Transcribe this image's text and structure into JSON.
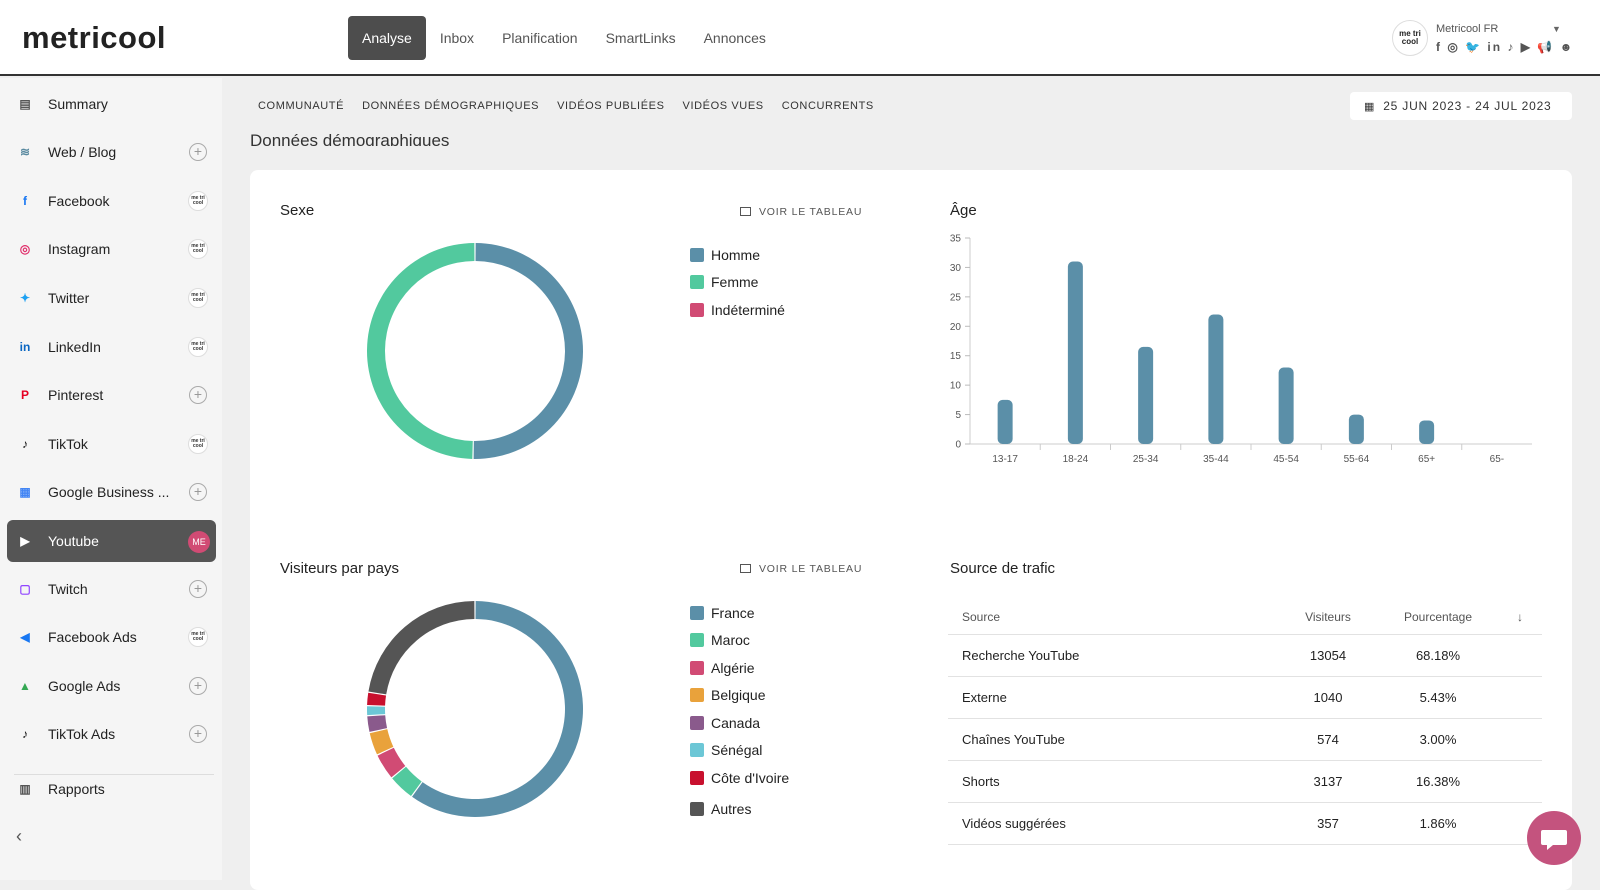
{
  "app": {
    "logo": "metricool",
    "nav": [
      "Analyse",
      "Inbox",
      "Planification",
      "SmartLinks",
      "Annonces"
    ],
    "account": {
      "name": "Metricool FR",
      "avatar_text": "me tri cool",
      "social_icons": "f ◎ 🐦 in ♪ ▶ 📢 ☻"
    }
  },
  "sidebar": {
    "items": [
      {
        "label": "Summary",
        "icon": "clipboard-icon",
        "color": "#555555",
        "glyph": "▤",
        "badge": "none"
      },
      {
        "label": "Web / Blog",
        "icon": "rss-icon",
        "color": "#5a8aa0",
        "glyph": "≋",
        "badge": "add"
      },
      {
        "label": "Facebook",
        "icon": "facebook-icon",
        "color": "#1877f2",
        "glyph": "f",
        "badge": "mini"
      },
      {
        "label": "Instagram",
        "icon": "instagram-icon",
        "color": "#e1306c",
        "glyph": "◎",
        "badge": "mini"
      },
      {
        "label": "Twitter",
        "icon": "twitter-icon",
        "color": "#1da1f2",
        "glyph": "✦",
        "badge": "mini"
      },
      {
        "label": "LinkedIn",
        "icon": "linkedin-icon",
        "color": "#0a66c2",
        "glyph": "in",
        "badge": "mini"
      },
      {
        "label": "Pinterest",
        "icon": "pinterest-icon",
        "color": "#e60023",
        "glyph": "P",
        "badge": "add"
      },
      {
        "label": "TikTok",
        "icon": "tiktok-icon",
        "color": "#111111",
        "glyph": "♪",
        "badge": "mini"
      },
      {
        "label": "Google Business ...",
        "icon": "google-business-icon",
        "color": "#4285f4",
        "glyph": "▦",
        "badge": "add"
      },
      {
        "label": "Youtube",
        "icon": "youtube-icon",
        "color": "#ffffff",
        "glyph": "▶",
        "badge": "me",
        "active": true
      },
      {
        "label": "Twitch",
        "icon": "twitch-icon",
        "color": "#9146ff",
        "glyph": "▢",
        "badge": "add"
      },
      {
        "label": "Facebook Ads",
        "icon": "megaphone-icon",
        "color": "#1877f2",
        "glyph": "◀",
        "badge": "mini"
      },
      {
        "label": "Google Ads",
        "icon": "google-ads-icon",
        "color": "#34a853",
        "glyph": "▲",
        "badge": "add"
      },
      {
        "label": "TikTok Ads",
        "icon": "tiktok-ads-icon",
        "color": "#111111",
        "glyph": "♪",
        "badge": "add"
      },
      {
        "label": "Rapports",
        "icon": "report-icon",
        "color": "#555555",
        "glyph": "▥",
        "badge": "none"
      }
    ],
    "mini_badge_text": "me tri cool",
    "me_badge_text": "ME",
    "add_symbol": "+",
    "collapse_symbol": "‹"
  },
  "subtabs": [
    "COMMUNAUTÉ",
    "DONNÉES DÉMOGRAPHIQUES",
    "VIDÉOS PUBLIÉES",
    "VIDÉOS VUES",
    "CONCURRENTS"
  ],
  "date_range": "25 JUN 2023 - 24 JUL 2023",
  "section_title": "Données démographiques",
  "voir_label": "VOIR LE TABLEAU",
  "sexe": {
    "title": "Sexe",
    "legend": [
      {
        "label": "Homme",
        "color": "#5b8fa8"
      },
      {
        "label": "Femme",
        "color": "#52c99e"
      },
      {
        "label": "Indéterminé",
        "color": "#d14b74"
      }
    ]
  },
  "pays": {
    "title": "Visiteurs par pays",
    "legend": [
      {
        "label": "France",
        "color": "#5b8fa8"
      },
      {
        "label": "Maroc",
        "color": "#52c99e"
      },
      {
        "label": "Algérie",
        "color": "#d14b74"
      },
      {
        "label": "Belgique",
        "color": "#e9a23b"
      },
      {
        "label": "Canada",
        "color": "#8a5a8c"
      },
      {
        "label": "Sénégal",
        "color": "#6cc7d6"
      },
      {
        "label": "Côte d'Ivoire",
        "color": "#c8102e"
      },
      {
        "label": "Autres",
        "color": "#555555"
      }
    ]
  },
  "age": {
    "title": "Âge"
  },
  "traffic": {
    "title": "Source de trafic",
    "headers": [
      "Source",
      "Visiteurs",
      "Pourcentage"
    ],
    "sort_icon": "↓",
    "rows": [
      [
        "Recherche YouTube",
        "13054",
        "68.18%"
      ],
      [
        "Externe",
        "1040",
        "5.43%"
      ],
      [
        "Chaînes YouTube",
        "574",
        "3.00%"
      ],
      [
        "Shorts",
        "3137",
        "16.38%"
      ],
      [
        "Vidéos suggérées",
        "357",
        "1.86%"
      ]
    ]
  },
  "chart_data": [
    {
      "type": "pie",
      "title": "Sexe",
      "categories": [
        "Homme",
        "Femme",
        "Indéterminé"
      ],
      "values": [
        50.3,
        49.7,
        0
      ],
      "colors": [
        "#5b8fa8",
        "#52c99e",
        "#d14b74"
      ]
    },
    {
      "type": "pie",
      "title": "Visiteurs par pays",
      "categories": [
        "France",
        "Maroc",
        "Algérie",
        "Belgique",
        "Canada",
        "Sénégal",
        "Côte d'Ivoire",
        "Autres"
      ],
      "values": [
        60,
        4,
        4,
        3.5,
        2.5,
        1.5,
        2,
        22.5
      ],
      "colors": [
        "#5b8fa8",
        "#52c99e",
        "#d14b74",
        "#e9a23b",
        "#8a5a8c",
        "#6cc7d6",
        "#c8102e",
        "#555555"
      ]
    },
    {
      "type": "bar",
      "title": "Âge",
      "categories": [
        "13-17",
        "18-24",
        "25-34",
        "35-44",
        "45-54",
        "55-64",
        "65+",
        "65-"
      ],
      "values": [
        7.5,
        31,
        16.5,
        22,
        13,
        5,
        4,
        0
      ],
      "ylim": [
        0,
        35
      ],
      "yticks": [
        0,
        5,
        10,
        15,
        20,
        25,
        30,
        35
      ],
      "color": "#5b8fa8"
    }
  ]
}
